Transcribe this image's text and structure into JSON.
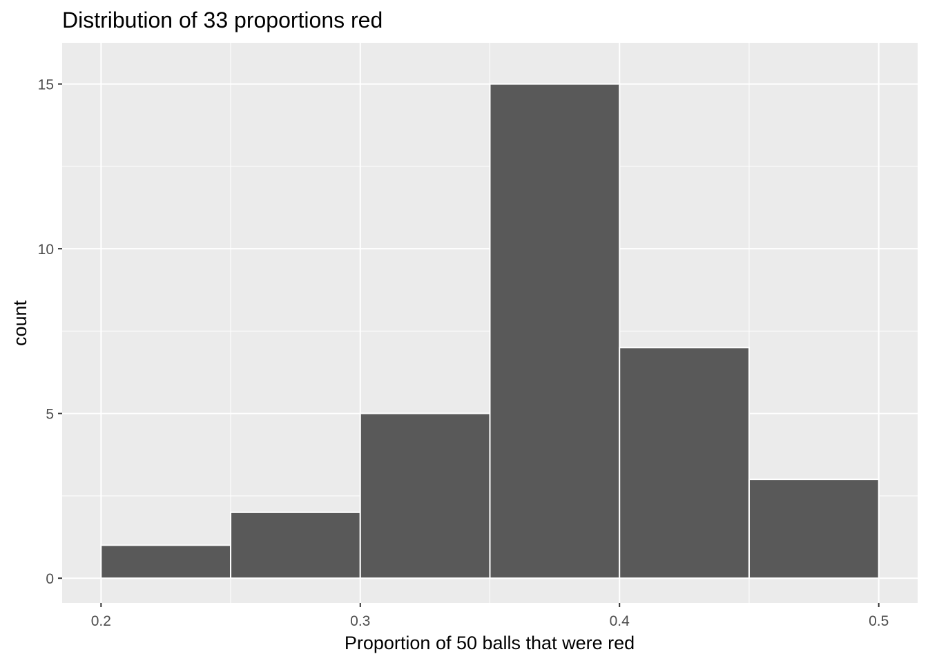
{
  "chart_data": {
    "type": "bar",
    "title": "Distribution of 33 proportions red",
    "xlabel": "Proportion of 50 balls that were red",
    "ylabel": "count",
    "x_ticks": [
      "0.2",
      "0.3",
      "0.4",
      "0.5"
    ],
    "y_ticks": [
      "0",
      "5",
      "10",
      "15"
    ],
    "xlim": [
      0.185,
      0.515
    ],
    "ylim": [
      -0.75,
      16.25
    ],
    "bins": [
      {
        "x_start": 0.2,
        "x_end": 0.25,
        "count": 1
      },
      {
        "x_start": 0.25,
        "x_end": 0.3,
        "count": 2
      },
      {
        "x_start": 0.3,
        "x_end": 0.35,
        "count": 5
      },
      {
        "x_start": 0.35,
        "x_end": 0.4,
        "count": 15
      },
      {
        "x_start": 0.4,
        "x_end": 0.45,
        "count": 7
      },
      {
        "x_start": 0.45,
        "x_end": 0.5,
        "count": 3
      }
    ],
    "grid": true,
    "legend": "none",
    "colors": {
      "panel": "#ebebeb",
      "grid": "#ffffff",
      "bar_fill": "#595959",
      "bar_outline": "#ffffff",
      "tick_text": "#4d4d4d",
      "tick_mark": "#333333"
    }
  }
}
